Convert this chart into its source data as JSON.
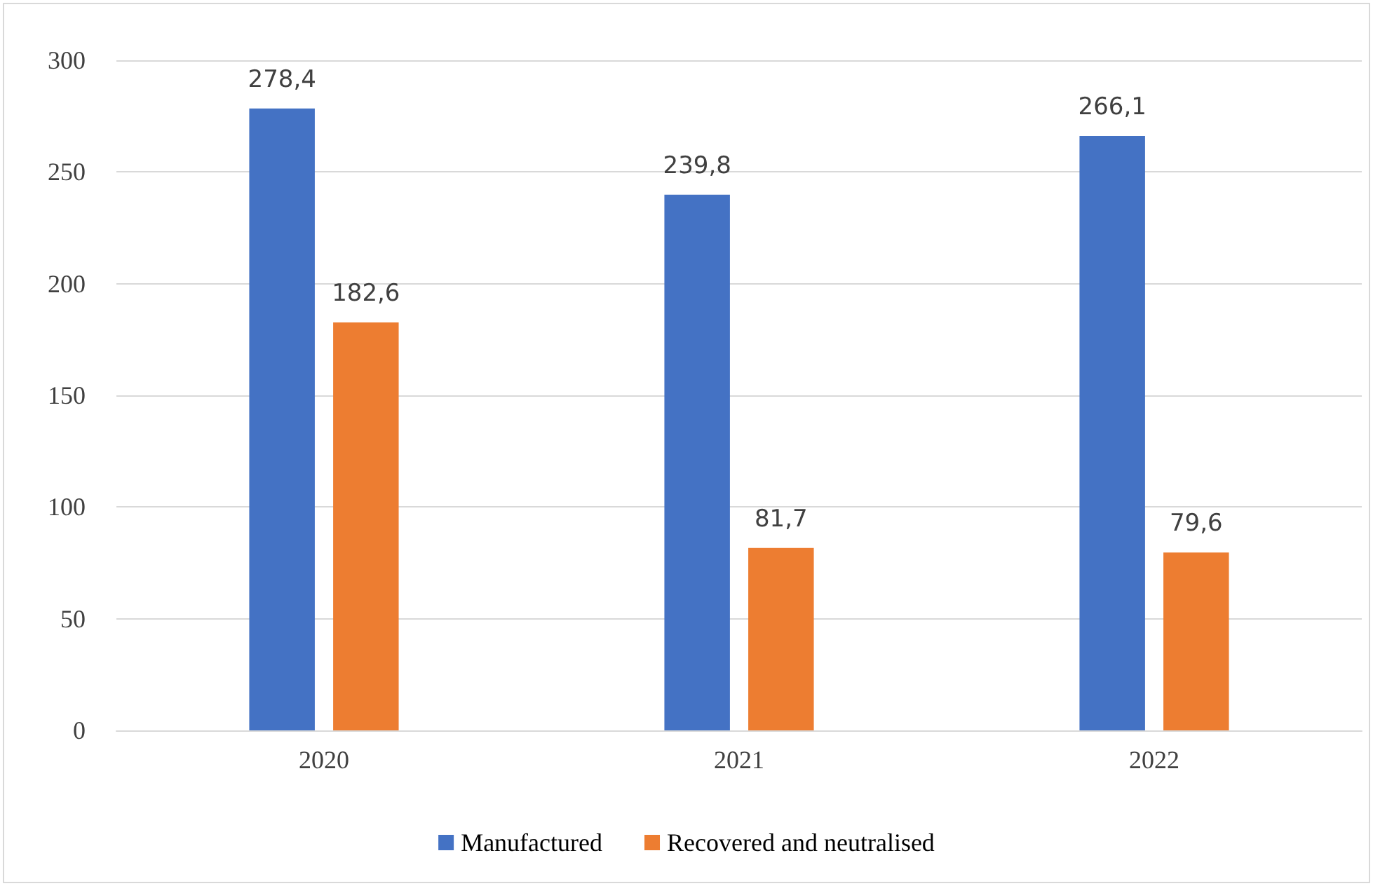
{
  "chart_data": {
    "type": "bar",
    "categories": [
      "2020",
      "2021",
      "2022"
    ],
    "series": [
      {
        "name": "Manufactured",
        "color": "#4472c4",
        "values": [
          278.4,
          239.8,
          266.1
        ],
        "value_labels": [
          "278,4",
          "239,8",
          "266,1"
        ]
      },
      {
        "name": "Recovered and neutralised",
        "color": "#ed7d31",
        "values": [
          182.6,
          81.7,
          79.6
        ],
        "value_labels": [
          "182,6",
          "81,7",
          "79,6"
        ]
      }
    ],
    "ylim": [
      0,
      300
    ],
    "yticks": [
      0,
      50,
      100,
      150,
      200,
      250,
      300
    ],
    "grid": "y",
    "legend": "bottom"
  }
}
